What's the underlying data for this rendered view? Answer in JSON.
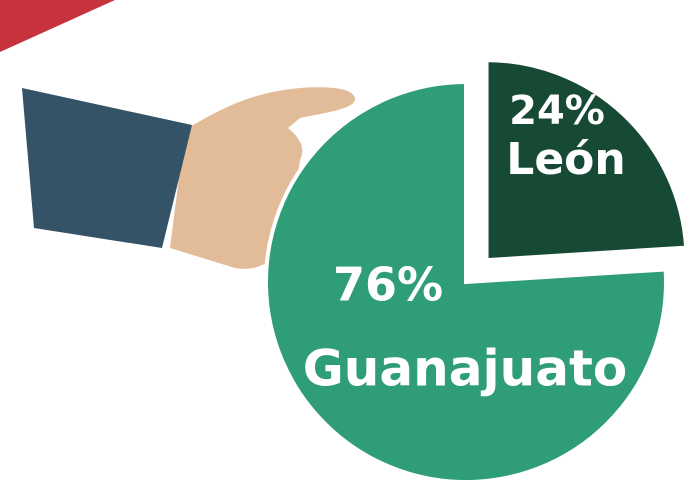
{
  "chart_data": {
    "type": "pie",
    "categories": [
      "Guanajuato",
      "León"
    ],
    "values": [
      76,
      24
    ],
    "value_labels": [
      "76%",
      "24%"
    ],
    "colors": [
      "#2e9d78",
      "#174a35"
    ]
  }
}
